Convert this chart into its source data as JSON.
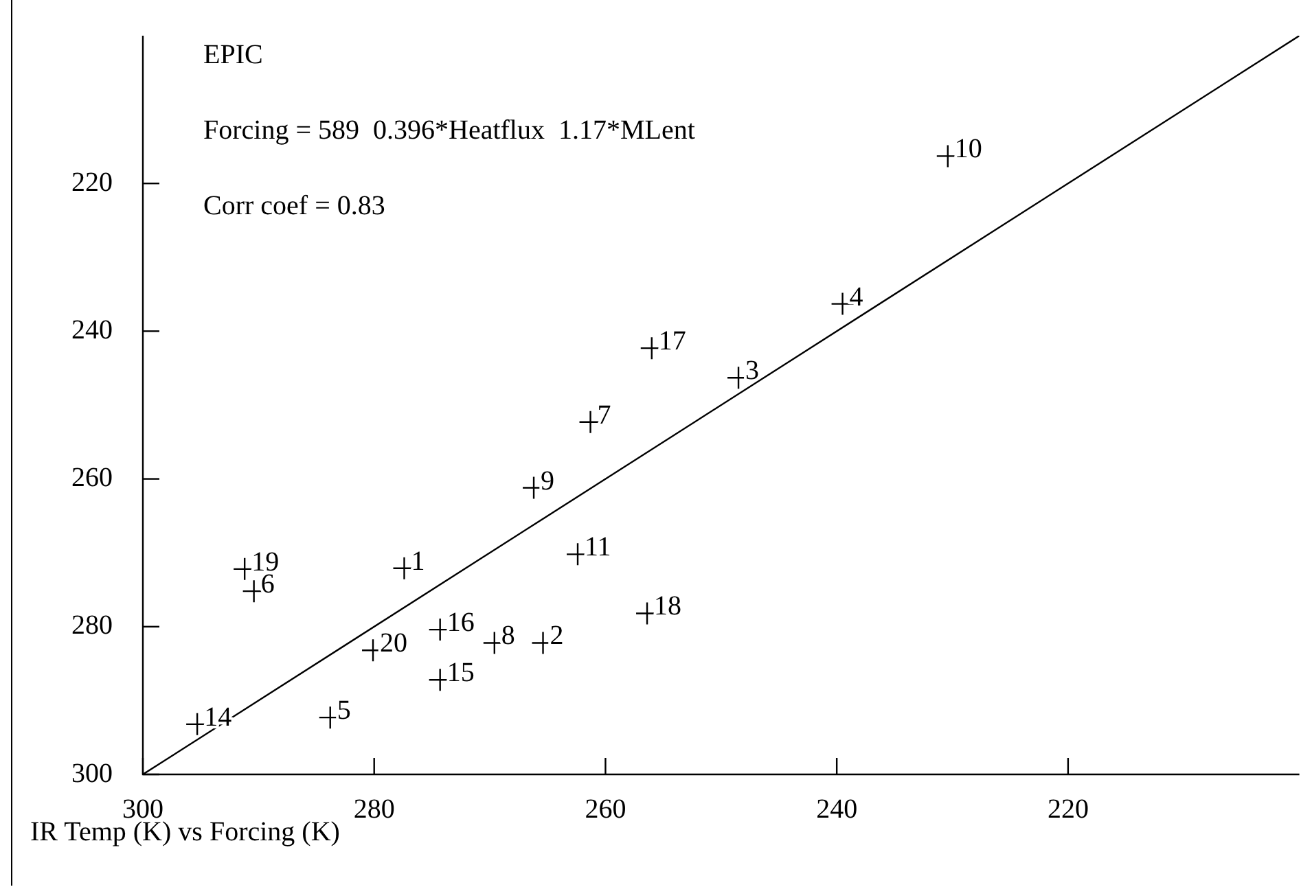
{
  "chart_data": {
    "type": "scatter",
    "xlabel": "IR Temp (K) vs Forcing (K)",
    "annotations": [
      "EPIC",
      "Forcing = 589  0.396*Heatflux  1.17*MLent",
      "Corr coef = 0.83",
      {
        "text": "1",
        "x": 277.4,
        "y": 272.1
      },
      {
        "text": "2",
        "x": 265.4,
        "y": 282.2
      },
      {
        "text": "3",
        "x": 248.5,
        "y": 246.3
      },
      {
        "text": "4",
        "x": 239.5,
        "y": 236.3
      },
      {
        "text": "5",
        "x": 283.8,
        "y": 292.3
      },
      {
        "text": "6",
        "x": 290.4,
        "y": 275.2
      },
      {
        "text": "7",
        "x": 261.3,
        "y": 252.3
      },
      {
        "text": "8",
        "x": 269.6,
        "y": 282.2
      },
      {
        "text": "9",
        "x": 266.2,
        "y": 261.2
      },
      {
        "text": "10",
        "x": 230.4,
        "y": 216.3
      },
      {
        "text": "11",
        "x": 262.4,
        "y": 270.2
      },
      {
        "text": "14",
        "x": 295.3,
        "y": 293.2
      },
      {
        "text": "15",
        "x": 274.3,
        "y": 287.2
      },
      {
        "text": "16",
        "x": 274.3,
        "y": 280.4
      },
      {
        "text": "17",
        "x": 256.0,
        "y": 242.3
      },
      {
        "text": "18",
        "x": 256.4,
        "y": 278.2
      },
      {
        "text": "19",
        "x": 291.2,
        "y": 272.2
      },
      {
        "text": "20",
        "x": 280.1,
        "y": 283.2
      }
    ],
    "xlim": [
      300,
      200
    ],
    "ylim": [
      300,
      200
    ],
    "xticks": [
      300,
      280,
      260,
      240,
      220
    ],
    "yticks": [
      300,
      280,
      260,
      240,
      220
    ],
    "series": [
      {
        "type": "scatter",
        "color": "#000000",
        "marker": "cross",
        "x": [
          277.4,
          265.4,
          248.5,
          239.5,
          283.8,
          290.4,
          261.3,
          269.6,
          266.2,
          230.4,
          262.4,
          295.3,
          274.3,
          274.3,
          256.0,
          256.4,
          291.2,
          280.1
        ],
        "values": [
          272.1,
          282.2,
          246.3,
          236.3,
          292.3,
          275.2,
          252.3,
          282.2,
          261.2,
          216.3,
          270.2,
          293.2,
          287.2,
          280.4,
          242.3,
          278.2,
          272.2,
          283.2
        ]
      },
      {
        "type": "line",
        "color": "#000000",
        "marker": "none",
        "line_style": "solid",
        "x": [
          300,
          200
        ],
        "values": [
          300,
          200
        ]
      }
    ]
  }
}
